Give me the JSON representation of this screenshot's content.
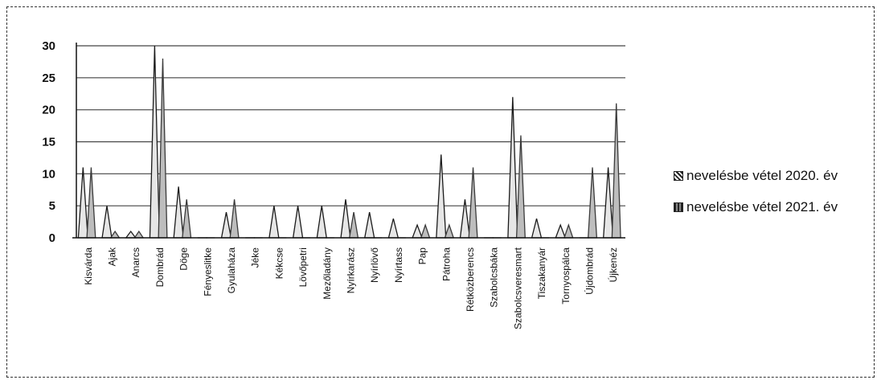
{
  "chart_data": {
    "type": "area",
    "categories": [
      "Kisvárda",
      "Ajak",
      "Anarcs",
      "Dombrád",
      "Döge",
      "Fényeslitke",
      "Gyulaháza",
      "Jéke",
      "Kékcse",
      "Lövőpetri",
      "Mezőladány",
      "Nyírkarász",
      "Nyírlövő",
      "Nyírtass",
      "Pap",
      "Pátroha",
      "Rétközberencs",
      "Szabolcsbáka",
      "Szabolcsveresmart",
      "Tiszakanyár",
      "Tornyospálca",
      "Újdombrád",
      "Újkenéz"
    ],
    "series": [
      {
        "name": "nevelésbe vétel 2020. év",
        "values": [
          11,
          5,
          1,
          30,
          8,
          0,
          4,
          0,
          5,
          5,
          5,
          6,
          4,
          3,
          2,
          13,
          6,
          0,
          22,
          3,
          2,
          0,
          11
        ]
      },
      {
        "name": "nevelésbe vétel 2021. év",
        "values": [
          11,
          1,
          1,
          28,
          6,
          0,
          6,
          0,
          0,
          0,
          0,
          4,
          0,
          0,
          2,
          2,
          11,
          0,
          16,
          0,
          2,
          11,
          21
        ]
      }
    ],
    "ylim": [
      0,
      30
    ],
    "yticks": [
      "0",
      "5",
      "10",
      "15",
      "20",
      "25",
      "30"
    ],
    "grid": true,
    "legend": "right",
    "colors": {
      "series1": "#222222",
      "series2": "#555555"
    }
  }
}
